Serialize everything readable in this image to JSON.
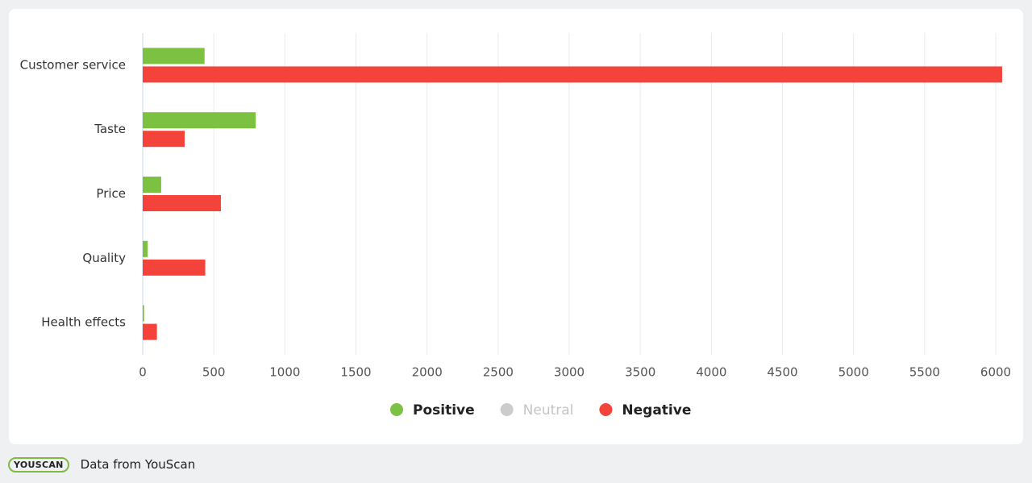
{
  "chart_data": {
    "type": "hbar",
    "categories": [
      "Customer service",
      "Taste",
      "Price",
      "Quality",
      "Health effects"
    ],
    "series": [
      {
        "name": "Positive",
        "color": "#7dc143",
        "values": [
          435,
          795,
          130,
          35,
          10
        ]
      },
      {
        "name": "Neutral",
        "color": "#cccccc",
        "hidden": true,
        "values": [
          null,
          null,
          null,
          null,
          null
        ]
      },
      {
        "name": "Negative",
        "color": "#f4433a",
        "values": [
          6045,
          295,
          550,
          440,
          100
        ]
      }
    ],
    "xlim": [
      0,
      6100
    ],
    "xticks": [
      0,
      500,
      1000,
      1500,
      2000,
      2500,
      3000,
      3500,
      4000,
      4500,
      5000,
      5500,
      6000
    ],
    "grid": true
  },
  "footer": {
    "logo": "YOUSCAN",
    "source": "Data from YouScan"
  }
}
